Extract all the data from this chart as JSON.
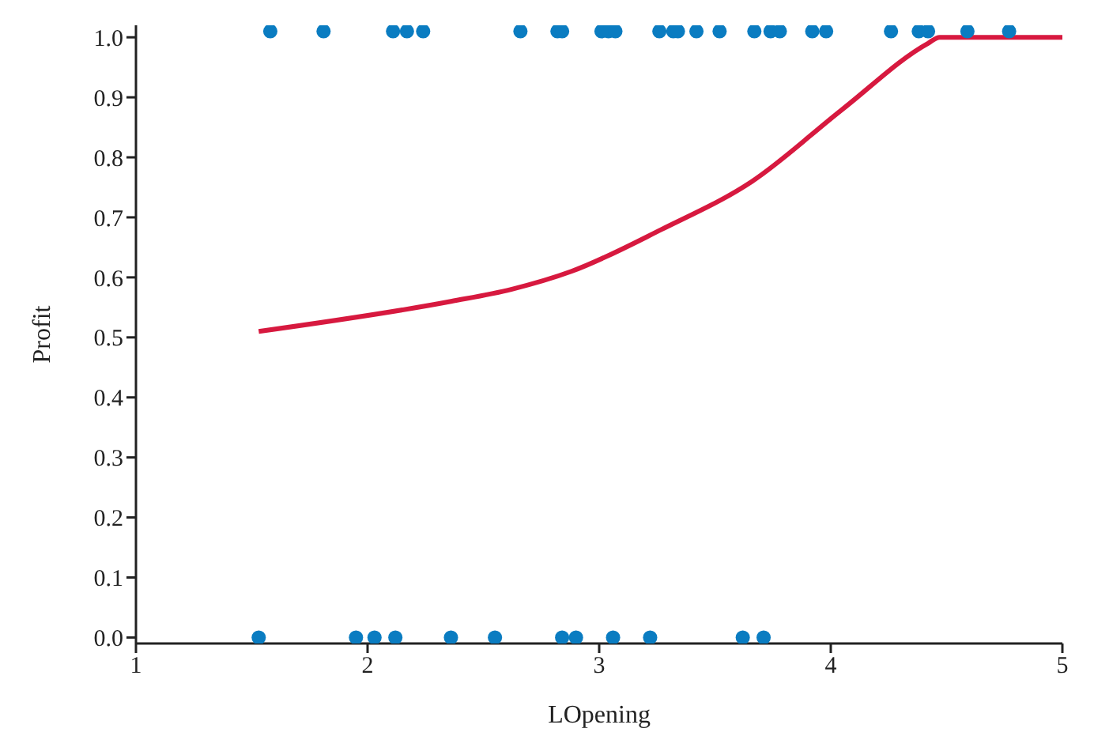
{
  "chart_data": {
    "type": "scatter",
    "xlabel": "LOpening",
    "ylabel": "Profit",
    "xlim": [
      1,
      5
    ],
    "ylim": [
      -0.01,
      1.02
    ],
    "xticks": [
      1,
      2,
      3,
      4,
      5
    ],
    "yticks": [
      {
        "value": 0,
        "label": "0.0"
      },
      0.1,
      0.2,
      0.3,
      0.4,
      0.5,
      0.6,
      0.7,
      0.8,
      0.9,
      {
        "value": 1,
        "label": "1.0"
      }
    ],
    "grid": false,
    "legend": false,
    "series": [
      {
        "color": "#0a7cc1",
        "marker": "circle",
        "x": [
          1.58,
          1.81,
          2.11,
          2.17,
          2.24,
          2.66,
          2.82,
          2.84,
          3.01,
          3.04,
          3.07,
          3.26,
          3.32,
          3.34,
          3.42,
          3.52,
          3.67,
          3.74,
          3.78,
          3.92,
          3.98,
          4.26,
          4.38,
          4.42,
          4.59,
          4.77,
          1.53,
          1.95,
          2.03,
          2.12,
          2.36,
          2.55,
          2.84,
          2.9,
          3.06,
          3.22,
          3.62,
          3.71
        ],
        "values": [
          1.01,
          1.01,
          1.01,
          1.01,
          1.01,
          1.01,
          1.01,
          1.01,
          1.01,
          1.01,
          1.01,
          1.01,
          1.01,
          1.01,
          1.01,
          1.01,
          1.01,
          1.01,
          1.01,
          1.01,
          1.01,
          1.01,
          1.01,
          1.01,
          1.01,
          1.01,
          0,
          0,
          0,
          0,
          0,
          0,
          0,
          0,
          0,
          0,
          0,
          0
        ]
      },
      {
        "type": "line",
        "color": "#d7193f",
        "marker": "none",
        "line_style": "solid",
        "x": [
          1.53,
          2.36,
          2.62,
          2.88,
          3.27,
          3.66,
          4.05,
          4.42,
          4.47,
          5
        ],
        "values": [
          0.51,
          0.56,
          0.58,
          0.61,
          0.68,
          0.76,
          0.88,
          0.99,
          1.0,
          1.0
        ]
      }
    ]
  }
}
